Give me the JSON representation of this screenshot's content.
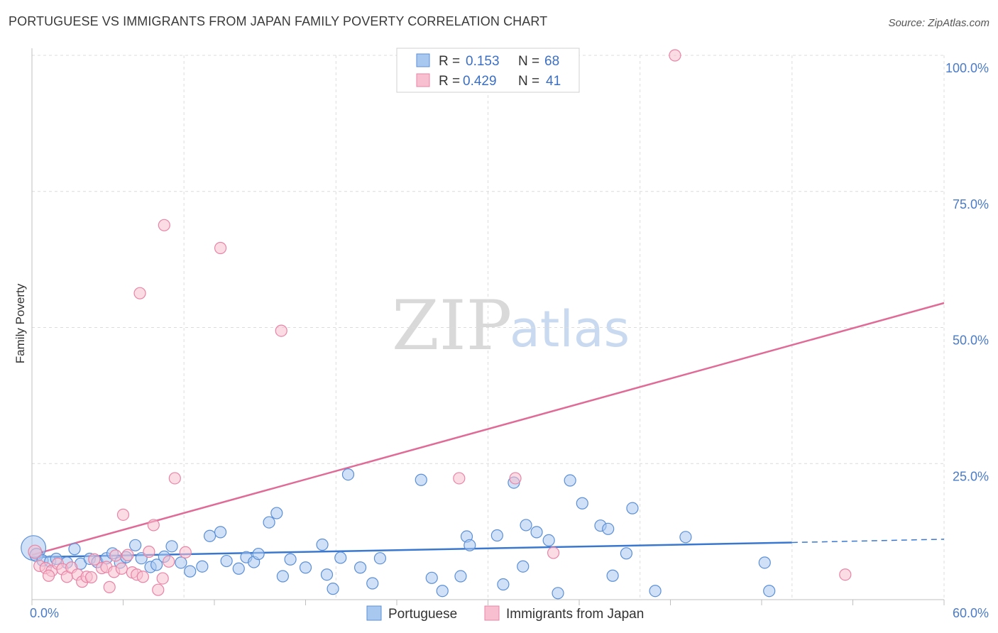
{
  "title": "PORTUGUESE VS IMMIGRANTS FROM JAPAN FAMILY POVERTY CORRELATION CHART",
  "source": "Source: ZipAtlas.com",
  "watermark": {
    "zip": "ZIP",
    "atlas": "atlas"
  },
  "colors": {
    "blue_fill": "#a9c8f0",
    "blue_stroke": "#5b8fd6",
    "blue_line": "#3a78d0",
    "pink_fill": "#f7bfd0",
    "pink_stroke": "#e884a6",
    "pink_line": "#e06b96",
    "grid": "#dcdcdc"
  },
  "legend": {
    "rows": [
      {
        "r_label": "R =",
        "r_value": "0.153",
        "n_label": "N =",
        "n_value": "68"
      },
      {
        "r_label": "R =",
        "r_value": "0.429",
        "n_label": "N =",
        "n_value": "41"
      }
    ]
  },
  "chart_data": {
    "type": "scatter",
    "title": "PORTUGUESE VS IMMIGRANTS FROM JAPAN FAMILY POVERTY CORRELATION CHART",
    "xlabel": "",
    "ylabel": "Family Poverty",
    "xlim": [
      0,
      60
    ],
    "ylim": [
      0,
      105
    ],
    "x_tick_labels": [
      {
        "value": 0,
        "label": "0.0%"
      },
      {
        "value": 60,
        "label": "60.0%"
      }
    ],
    "y_tick_labels": [
      {
        "value": 25,
        "label": "25.0%"
      },
      {
        "value": 50,
        "label": "50.0%"
      },
      {
        "value": 75,
        "label": "75.0%"
      },
      {
        "value": 100,
        "label": "100.0%"
      }
    ],
    "series": [
      {
        "name": "Portuguese",
        "color": "#a9c8f0",
        "trend": {
          "x0": 0,
          "y0": 7.8,
          "x1": 50,
          "y1": 10.5,
          "dash_to_x": 60,
          "dash_to_y": 11.1
        },
        "points": [
          [
            0.1,
            9.5,
            26
          ],
          [
            0.3,
            8.2,
            14
          ],
          [
            0.7,
            7.2,
            12
          ],
          [
            1.2,
            7.0,
            12
          ],
          [
            1.6,
            7.5,
            12
          ],
          [
            2.3,
            6.8,
            12
          ],
          [
            2.8,
            9.3,
            12
          ],
          [
            3.2,
            6.6,
            12
          ],
          [
            3.8,
            7.5,
            12
          ],
          [
            4.3,
            6.9,
            12
          ],
          [
            4.9,
            7.6,
            12
          ],
          [
            5.3,
            8.5,
            12
          ],
          [
            5.8,
            6.8,
            12
          ],
          [
            6.2,
            7.8,
            12
          ],
          [
            6.8,
            10.0,
            12
          ],
          [
            7.2,
            7.6,
            12
          ],
          [
            7.8,
            6.0,
            12
          ],
          [
            8.2,
            6.4,
            12
          ],
          [
            8.7,
            7.9,
            12
          ],
          [
            9.2,
            9.8,
            12
          ],
          [
            9.8,
            6.8,
            12
          ],
          [
            10.4,
            5.2,
            12
          ],
          [
            11.2,
            6.1,
            12
          ],
          [
            11.7,
            11.7,
            12
          ],
          [
            12.4,
            12.4,
            12
          ],
          [
            12.8,
            7.1,
            12
          ],
          [
            13.6,
            5.7,
            12
          ],
          [
            14.1,
            7.8,
            12
          ],
          [
            14.6,
            6.9,
            12
          ],
          [
            14.9,
            8.4,
            12
          ],
          [
            15.6,
            14.2,
            12
          ],
          [
            16.1,
            15.9,
            12
          ],
          [
            16.5,
            4.3,
            12
          ],
          [
            17.0,
            7.4,
            12
          ],
          [
            18.0,
            5.9,
            12
          ],
          [
            19.1,
            10.1,
            12
          ],
          [
            19.4,
            4.6,
            12
          ],
          [
            19.8,
            2.0,
            12
          ],
          [
            20.3,
            7.7,
            12
          ],
          [
            20.8,
            23.0,
            12
          ],
          [
            21.6,
            5.9,
            12
          ],
          [
            22.4,
            3.0,
            12
          ],
          [
            22.9,
            7.6,
            12
          ],
          [
            25.6,
            22.0,
            12
          ],
          [
            26.3,
            4.0,
            12
          ],
          [
            27.0,
            1.6,
            12
          ],
          [
            28.2,
            4.3,
            12
          ],
          [
            28.6,
            11.6,
            12
          ],
          [
            28.8,
            10.0,
            12
          ],
          [
            30.6,
            11.8,
            12
          ],
          [
            31.0,
            2.8,
            12
          ],
          [
            31.7,
            21.5,
            12
          ],
          [
            32.3,
            6.1,
            12
          ],
          [
            32.5,
            13.7,
            12
          ],
          [
            33.2,
            12.4,
            12
          ],
          [
            34.0,
            10.9,
            12
          ],
          [
            34.6,
            1.2,
            12
          ],
          [
            35.4,
            21.9,
            12
          ],
          [
            36.2,
            17.7,
            12
          ],
          [
            37.4,
            13.6,
            12
          ],
          [
            37.9,
            13.0,
            12
          ],
          [
            38.2,
            4.4,
            12
          ],
          [
            39.1,
            8.5,
            12
          ],
          [
            39.5,
            16.8,
            12
          ],
          [
            41.0,
            1.6,
            12
          ],
          [
            43.0,
            11.5,
            12
          ],
          [
            48.2,
            6.8,
            12
          ],
          [
            48.5,
            1.6,
            12
          ]
        ]
      },
      {
        "name": "Immigrants from Japan",
        "color": "#f7bfd0",
        "trend": {
          "x0": 0,
          "y0": 8.2,
          "x1": 60,
          "y1": 54.5
        },
        "points": [
          [
            0.2,
            8.8,
            14
          ],
          [
            0.5,
            6.2,
            12
          ],
          [
            0.9,
            5.8,
            12
          ],
          [
            1.3,
            5.3,
            12
          ],
          [
            1.7,
            6.6,
            12
          ],
          [
            2.0,
            5.6,
            12
          ],
          [
            2.3,
            4.2,
            12
          ],
          [
            2.6,
            5.9,
            12
          ],
          [
            3.0,
            4.6,
            12
          ],
          [
            3.3,
            3.3,
            12
          ],
          [
            3.6,
            4.2,
            12
          ],
          [
            3.9,
            4.1,
            12
          ],
          [
            4.1,
            7.4,
            12
          ],
          [
            4.6,
            5.8,
            12
          ],
          [
            4.9,
            6.0,
            12
          ],
          [
            5.1,
            2.3,
            12
          ],
          [
            5.4,
            5.1,
            12
          ],
          [
            5.5,
            8.1,
            12
          ],
          [
            5.9,
            5.7,
            12
          ],
          [
            6.0,
            15.6,
            12
          ],
          [
            6.3,
            8.2,
            12
          ],
          [
            6.6,
            5.0,
            12
          ],
          [
            6.9,
            4.6,
            12
          ],
          [
            7.3,
            4.2,
            12
          ],
          [
            7.7,
            8.8,
            12
          ],
          [
            8.0,
            13.7,
            12
          ],
          [
            8.3,
            1.8,
            12
          ],
          [
            8.6,
            3.9,
            12
          ],
          [
            9.0,
            7.0,
            12
          ],
          [
            7.1,
            56.3,
            12
          ],
          [
            8.7,
            68.8,
            12
          ],
          [
            9.4,
            22.3,
            12
          ],
          [
            10.1,
            8.7,
            12
          ],
          [
            12.4,
            64.6,
            12
          ],
          [
            16.4,
            49.4,
            12
          ],
          [
            28.1,
            22.3,
            12
          ],
          [
            31.8,
            22.3,
            12
          ],
          [
            34.3,
            8.6,
            12
          ],
          [
            42.3,
            100.0,
            12
          ],
          [
            53.5,
            4.6,
            12
          ],
          [
            1.1,
            4.4,
            12
          ]
        ]
      }
    ]
  }
}
